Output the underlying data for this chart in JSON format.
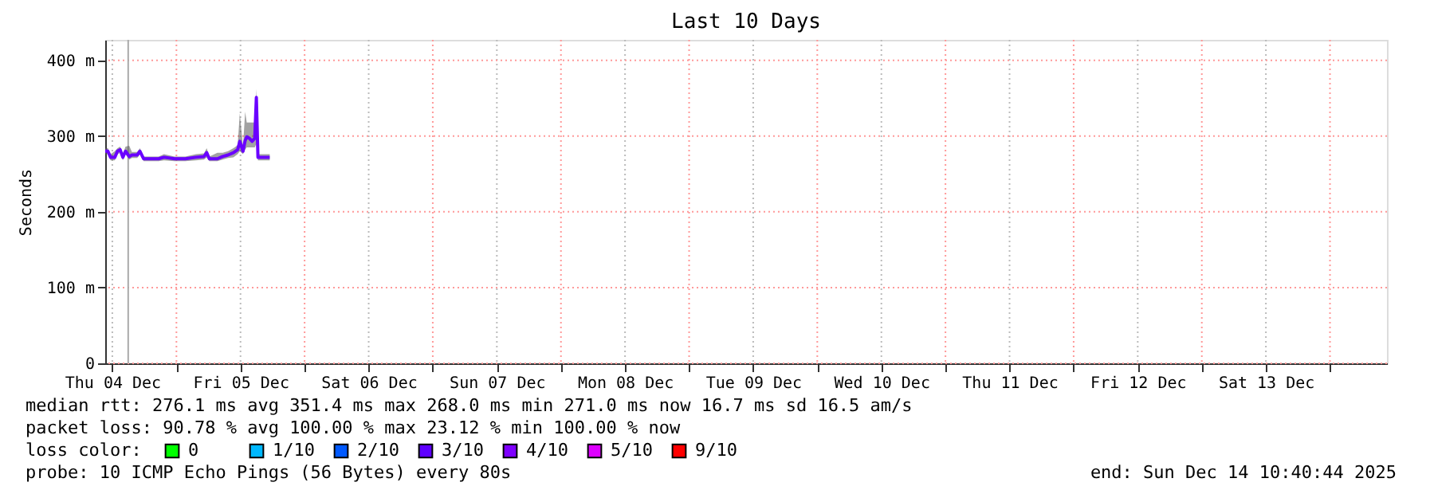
{
  "chart_data": {
    "type": "line",
    "title": "Last 10 Days",
    "ylabel": "Seconds",
    "x": [
      "2025-12-04T10:40",
      "2025-12-04T11:10",
      "2025-12-04T11:40",
      "2025-12-04T12:28",
      "2025-12-04T12:58",
      "2025-12-04T13:28",
      "2025-12-04T13:58",
      "2025-12-04T14:28",
      "2025-12-04T15:10",
      "2025-12-04T15:40",
      "2025-12-04T16:40",
      "2025-12-04T17:10",
      "2025-12-04T17:52",
      "2025-12-04T19:40",
      "2025-12-04T20:40",
      "2025-12-04T21:40",
      "2025-12-04T23:40",
      "2025-12-05T01:40",
      "2025-12-05T03:40",
      "2025-12-05T05:10",
      "2025-12-05T05:40",
      "2025-12-05T06:10",
      "2025-12-05T07:40",
      "2025-12-05T08:40",
      "2025-12-05T09:40",
      "2025-12-05T10:40",
      "2025-12-05T11:28",
      "2025-12-05T11:52",
      "2025-12-05T12:28",
      "2025-12-05T12:52",
      "2025-12-05T13:10",
      "2025-12-05T13:40",
      "2025-12-05T14:10",
      "2025-12-05T14:40",
      "2025-12-05T14:58",
      "2025-12-05T15:16",
      "2025-12-05T16:40",
      "2025-12-05T17:28"
    ],
    "series": [
      {
        "color": "#6a00ff",
        "values": [
          280,
          280,
          272,
          272,
          280,
          282,
          272,
          280,
          273,
          275,
          275,
          280,
          270,
          270,
          270,
          272,
          270,
          270,
          272,
          273,
          278,
          270,
          270,
          273,
          275,
          278,
          282,
          293,
          280,
          294,
          299,
          297,
          293,
          297,
          351,
          272,
          272,
          272
        ],
        "lower": [
          276,
          276,
          268,
          268,
          276,
          278,
          268,
          276,
          269,
          271,
          271,
          276,
          267,
          267,
          267,
          268,
          267,
          267,
          268,
          269,
          272,
          267,
          267,
          269,
          271,
          272,
          276,
          280,
          276,
          282,
          285,
          285,
          285,
          285,
          290,
          268,
          268,
          268
        ],
        "upper": [
          284,
          284,
          276,
          280,
          284,
          286,
          276,
          286,
          287,
          279,
          279,
          284,
          273,
          273,
          273,
          276,
          273,
          273,
          276,
          277,
          284,
          273,
          278,
          278,
          280,
          284,
          288,
          330,
          286,
          332,
          318,
          318,
          318,
          318,
          362,
          276,
          276,
          276
        ]
      },
      {
        "name": "0",
        "color": "#00ff00",
        "values": [
          null,
          null,
          null,
          null,
          null,
          null,
          null,
          null,
          null,
          null,
          null,
          null,
          null,
          null,
          null,
          null,
          null,
          null,
          null,
          null,
          null,
          null,
          null,
          null,
          null,
          null,
          null,
          null,
          null,
          null,
          null,
          null,
          null,
          null,
          null,
          null,
          null,
          null
        ]
      },
      {
        "name": "1/10",
        "color": "#00b8ff",
        "values": [
          null,
          null,
          null,
          null,
          null,
          null,
          null,
          null,
          null,
          null,
          null,
          null,
          null,
          null,
          null,
          null,
          null,
          null,
          null,
          null,
          null,
          null,
          null,
          null,
          null,
          null,
          null,
          null,
          null,
          null,
          null,
          null,
          null,
          null,
          null,
          null,
          null,
          null
        ]
      },
      {
        "name": "2/10",
        "color": "#0059ff",
        "values": [
          null,
          null,
          null,
          null,
          null,
          null,
          null,
          null,
          null,
          null,
          null,
          null,
          null,
          null,
          null,
          null,
          null,
          null,
          null,
          null,
          null,
          null,
          null,
          null,
          null,
          null,
          null,
          null,
          null,
          null,
          null,
          null,
          null,
          null,
          null,
          null,
          null,
          null
        ]
      },
      {
        "name": "3/10",
        "color": "#5e00ff",
        "values": [
          null,
          null,
          null,
          null,
          null,
          null,
          null,
          null,
          null,
          null,
          null,
          null,
          null,
          null,
          null,
          null,
          null,
          null,
          null,
          null,
          null,
          null,
          null,
          null,
          null,
          null,
          null,
          null,
          null,
          null,
          null,
          null,
          null,
          null,
          null,
          null,
          null,
          null
        ]
      },
      {
        "name": "4/10",
        "color": "#7e00ff",
        "values": [
          null,
          null,
          null,
          null,
          null,
          null,
          null,
          null,
          null,
          null,
          null,
          null,
          null,
          null,
          null,
          null,
          null,
          null,
          null,
          null,
          null,
          null,
          null,
          null,
          null,
          null,
          null,
          null,
          null,
          null,
          null,
          null,
          null,
          null,
          null,
          null,
          null,
          null
        ]
      },
      {
        "name": "5/10",
        "color": "#dd00ff",
        "values": [
          null,
          null,
          null,
          null,
          null,
          null,
          null,
          null,
          null,
          null,
          null,
          null,
          null,
          null,
          null,
          null,
          null,
          null,
          null,
          null,
          null,
          null,
          null,
          null,
          null,
          null,
          null,
          null,
          null,
          null,
          null,
          null,
          null,
          null,
          null,
          null,
          null,
          null
        ]
      },
      {
        "name": "9/10",
        "color": "#ff0000",
        "values": [
          null,
          null,
          null,
          null,
          null,
          null,
          null,
          null,
          null,
          null,
          null,
          null,
          null,
          null,
          null,
          null,
          null,
          null,
          null,
          null,
          null,
          null,
          null,
          null,
          null,
          null,
          null,
          null,
          null,
          null,
          null,
          null,
          null,
          null,
          null,
          null,
          null,
          null
        ]
      }
    ],
    "legend": "bottom",
    "legend_title": "loss color:",
    "xlim": [
      "2025-12-04T10:40",
      "2025-12-14T10:40"
    ],
    "xticks": [
      {
        "value": "2025-12-04T12:00",
        "label": "Thu 04 Dec"
      },
      {
        "value": "2025-12-05T00:00",
        "label": null
      },
      {
        "value": "2025-12-05T12:00",
        "label": "Fri 05 Dec"
      },
      {
        "value": "2025-12-06T00:00",
        "label": null
      },
      {
        "value": "2025-12-06T12:00",
        "label": "Sat 06 Dec"
      },
      {
        "value": "2025-12-07T00:00",
        "label": null
      },
      {
        "value": "2025-12-07T12:00",
        "label": "Sun 07 Dec"
      },
      {
        "value": "2025-12-08T00:00",
        "label": null
      },
      {
        "value": "2025-12-08T12:00",
        "label": "Mon 08 Dec"
      },
      {
        "value": "2025-12-09T00:00",
        "label": null
      },
      {
        "value": "2025-12-09T12:00",
        "label": "Tue 09 Dec"
      },
      {
        "value": "2025-12-10T00:00",
        "label": null
      },
      {
        "value": "2025-12-10T12:00",
        "label": "Wed 10 Dec"
      },
      {
        "value": "2025-12-11T00:00",
        "label": null
      },
      {
        "value": "2025-12-11T12:00",
        "label": "Thu 11 Dec"
      },
      {
        "value": "2025-12-12T00:00",
        "label": null
      },
      {
        "value": "2025-12-12T12:00",
        "label": "Fri 12 Dec"
      },
      {
        "value": "2025-12-13T00:00",
        "label": null
      },
      {
        "value": "2025-12-13T12:00",
        "label": "Sat 13 Dec"
      },
      {
        "value": "2025-12-14T00:00",
        "label": null
      }
    ],
    "ylim": [
      0,
      427
    ],
    "yticks": [
      {
        "value": 0,
        "label": "0"
      },
      {
        "value": 100,
        "label": "100 m"
      },
      {
        "value": 200,
        "label": "200 m"
      },
      {
        "value": 300,
        "label": "300 m"
      },
      {
        "value": 400,
        "label": "400 m"
      }
    ],
    "grid": true,
    "ref_lines": [
      {
        "axis": "x",
        "value": "2025-12-04T14:58",
        "label": null,
        "color": "#aaaaaa"
      }
    ],
    "annotations": [
      "median rtt:  276.1 ms avg  351.4 ms max  268.0 ms min  271.0 ms now  16.7 ms sd  16.5   am/s",
      "packet loss: 90.78 % avg  100.00 % max  23.12 % min  100.00 % now",
      "probe:       10 ICMP Echo Pings (56 Bytes) every 80s",
      "end: Sun Dec 14 10:40:44 2025"
    ]
  }
}
